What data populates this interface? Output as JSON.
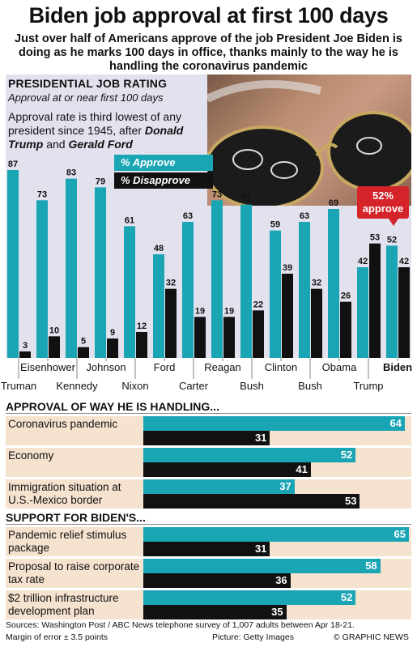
{
  "header": {
    "title": "Biden job approval at first 100 days",
    "subtitle": "Just over half of Americans approve of the job President Joe Biden is doing as he marks 100 days in office, thanks mainly to the way he is handling the coronavirus pandemic"
  },
  "presidential": {
    "title": "PRESIDENTIAL JOB RATING",
    "subtitle": "Approval at or near first 100 days",
    "note_a": "Approval rate is third lowest of any president since 1945, after ",
    "note_trump": "Donald Trump",
    "note_and": " and ",
    "note_ford": "Gerald Ford",
    "legend_approve": "% Approve",
    "legend_disapprove": "% Disapprove",
    "callout": "52% approve"
  },
  "colors": {
    "approve": "#1aa5b5",
    "disapprove": "#111111",
    "callout": "#d5232a",
    "panel": "#e2e2ee",
    "row_bg": "#f5e2cf"
  },
  "chart_data": [
    {
      "type": "bar",
      "title": "PRESIDENTIAL JOB RATING",
      "categories": [
        "Truman",
        "Eisenhower",
        "Kennedy",
        "Johnson",
        "Nixon",
        "Ford",
        "Carter",
        "Reagan",
        "Bush",
        "Clinton",
        "Bush",
        "Obama",
        "Trump",
        "Biden"
      ],
      "series": [
        {
          "name": "% Approve",
          "values": [
            87,
            73,
            83,
            79,
            61,
            48,
            63,
            73,
            71,
            59,
            63,
            69,
            42,
            52
          ]
        },
        {
          "name": "% Disapprove",
          "values": [
            3,
            10,
            5,
            9,
            12,
            32,
            19,
            19,
            22,
            39,
            32,
            26,
            53,
            42
          ]
        }
      ],
      "ylim": [
        0,
        90
      ]
    },
    {
      "type": "bar",
      "title": "APPROVAL OF WAY HE IS HANDLING...",
      "categories": [
        "Coronavirus pandemic",
        "Economy",
        "Immigration situation at U.S.-Mexico border"
      ],
      "series": [
        {
          "name": "% Approve",
          "values": [
            64,
            52,
            37
          ]
        },
        {
          "name": "% Disapprove",
          "values": [
            31,
            41,
            53
          ]
        }
      ]
    },
    {
      "type": "bar",
      "title": "SUPPORT FOR BIDEN'S...",
      "categories": [
        "Pandemic relief stimulus package",
        "Proposal to raise corporate tax rate",
        "$2 trillion infrastructure development plan"
      ],
      "series": [
        {
          "name": "% Approve",
          "values": [
            65,
            58,
            52
          ]
        },
        {
          "name": "% Disapprove",
          "values": [
            31,
            36,
            35
          ]
        }
      ]
    }
  ],
  "sections": {
    "handling_title": "APPROVAL OF WAY HE IS HANDLING...",
    "support_title": "SUPPORT FOR BIDEN'S..."
  },
  "footer": {
    "sources": "Sources: Washington Post / ABC News telephone survey of 1,007 adults between Apr 18-21.",
    "margin": "Margin of error ± 3.5 points",
    "picture": "Picture: Getty Images",
    "credit": "© GRAPHIC NEWS"
  },
  "watermark": "GRAPHIC NEWS"
}
